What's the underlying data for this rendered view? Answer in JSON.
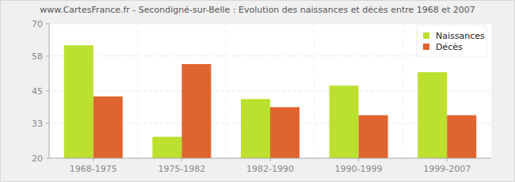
{
  "chart_data": {
    "type": "bar",
    "title": "www.CartesFrance.fr - Secondigné-sur-Belle : Evolution des naissances et décès entre 1968 et 2007",
    "categories": [
      "1968-1975",
      "1975-1982",
      "1982-1990",
      "1990-1999",
      "1999-2007"
    ],
    "series": [
      {
        "name": "Naissances",
        "color": "#bbe02e",
        "values": [
          62,
          28,
          42,
          47,
          52
        ]
      },
      {
        "name": "Décès",
        "color": "#e06430",
        "values": [
          43,
          55,
          39,
          36,
          36
        ]
      }
    ],
    "ylim": [
      20,
      70
    ],
    "yticks": [
      20,
      33,
      45,
      58,
      70
    ],
    "grid": true,
    "legend": "top-right"
  }
}
